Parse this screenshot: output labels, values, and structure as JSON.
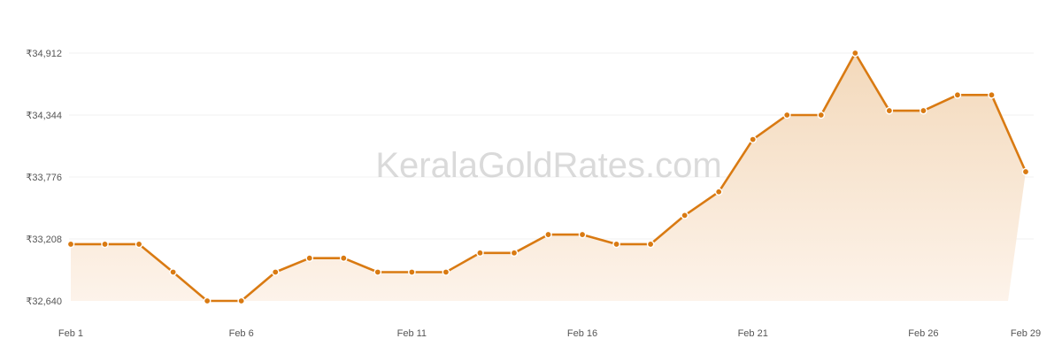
{
  "watermark": "KeralaGoldRates.com",
  "colors": {
    "line": "#d97a12",
    "marker_fill": "#d97a12",
    "marker_stroke": "#ffffff",
    "area_top": "#f3d9bb",
    "area_bottom": "#fdf3ea"
  },
  "chart_data": {
    "type": "area",
    "title": "",
    "xlabel": "",
    "ylabel": "",
    "x": [
      "Feb 1",
      "Feb 2",
      "Feb 3",
      "Feb 4",
      "Feb 5",
      "Feb 6",
      "Feb 7",
      "Feb 8",
      "Feb 9",
      "Feb 10",
      "Feb 11",
      "Feb 12",
      "Feb 13",
      "Feb 14",
      "Feb 15",
      "Feb 16",
      "Feb 17",
      "Feb 18",
      "Feb 19",
      "Feb 20",
      "Feb 21",
      "Feb 22",
      "Feb 23",
      "Feb 24",
      "Feb 25",
      "Feb 26",
      "Feb 27",
      "Feb 28",
      "Feb 29"
    ],
    "x_tick_labels": [
      "Feb 1",
      "Feb 6",
      "Feb 11",
      "Feb 16",
      "Feb 21",
      "Feb 26",
      "Feb 29"
    ],
    "series": [
      {
        "values": [
          33160,
          33160,
          33160,
          32904,
          32640,
          32640,
          32904,
          33032,
          33032,
          32904,
          32904,
          32904,
          33080,
          33080,
          33248,
          33248,
          33160,
          33160,
          33424,
          33640,
          34120,
          34344,
          34344,
          34912,
          34384,
          34384,
          34528,
          34528,
          33824
        ]
      }
    ],
    "y_tick_labels": [
      "₹32,640",
      "₹33,208",
      "₹33,776",
      "₹34,344",
      "₹34,912"
    ],
    "y_ticks": [
      32640,
      33208,
      33776,
      34344,
      34912
    ],
    "ylim": [
      32640,
      34912
    ],
    "grid": true,
    "markers": true
  }
}
